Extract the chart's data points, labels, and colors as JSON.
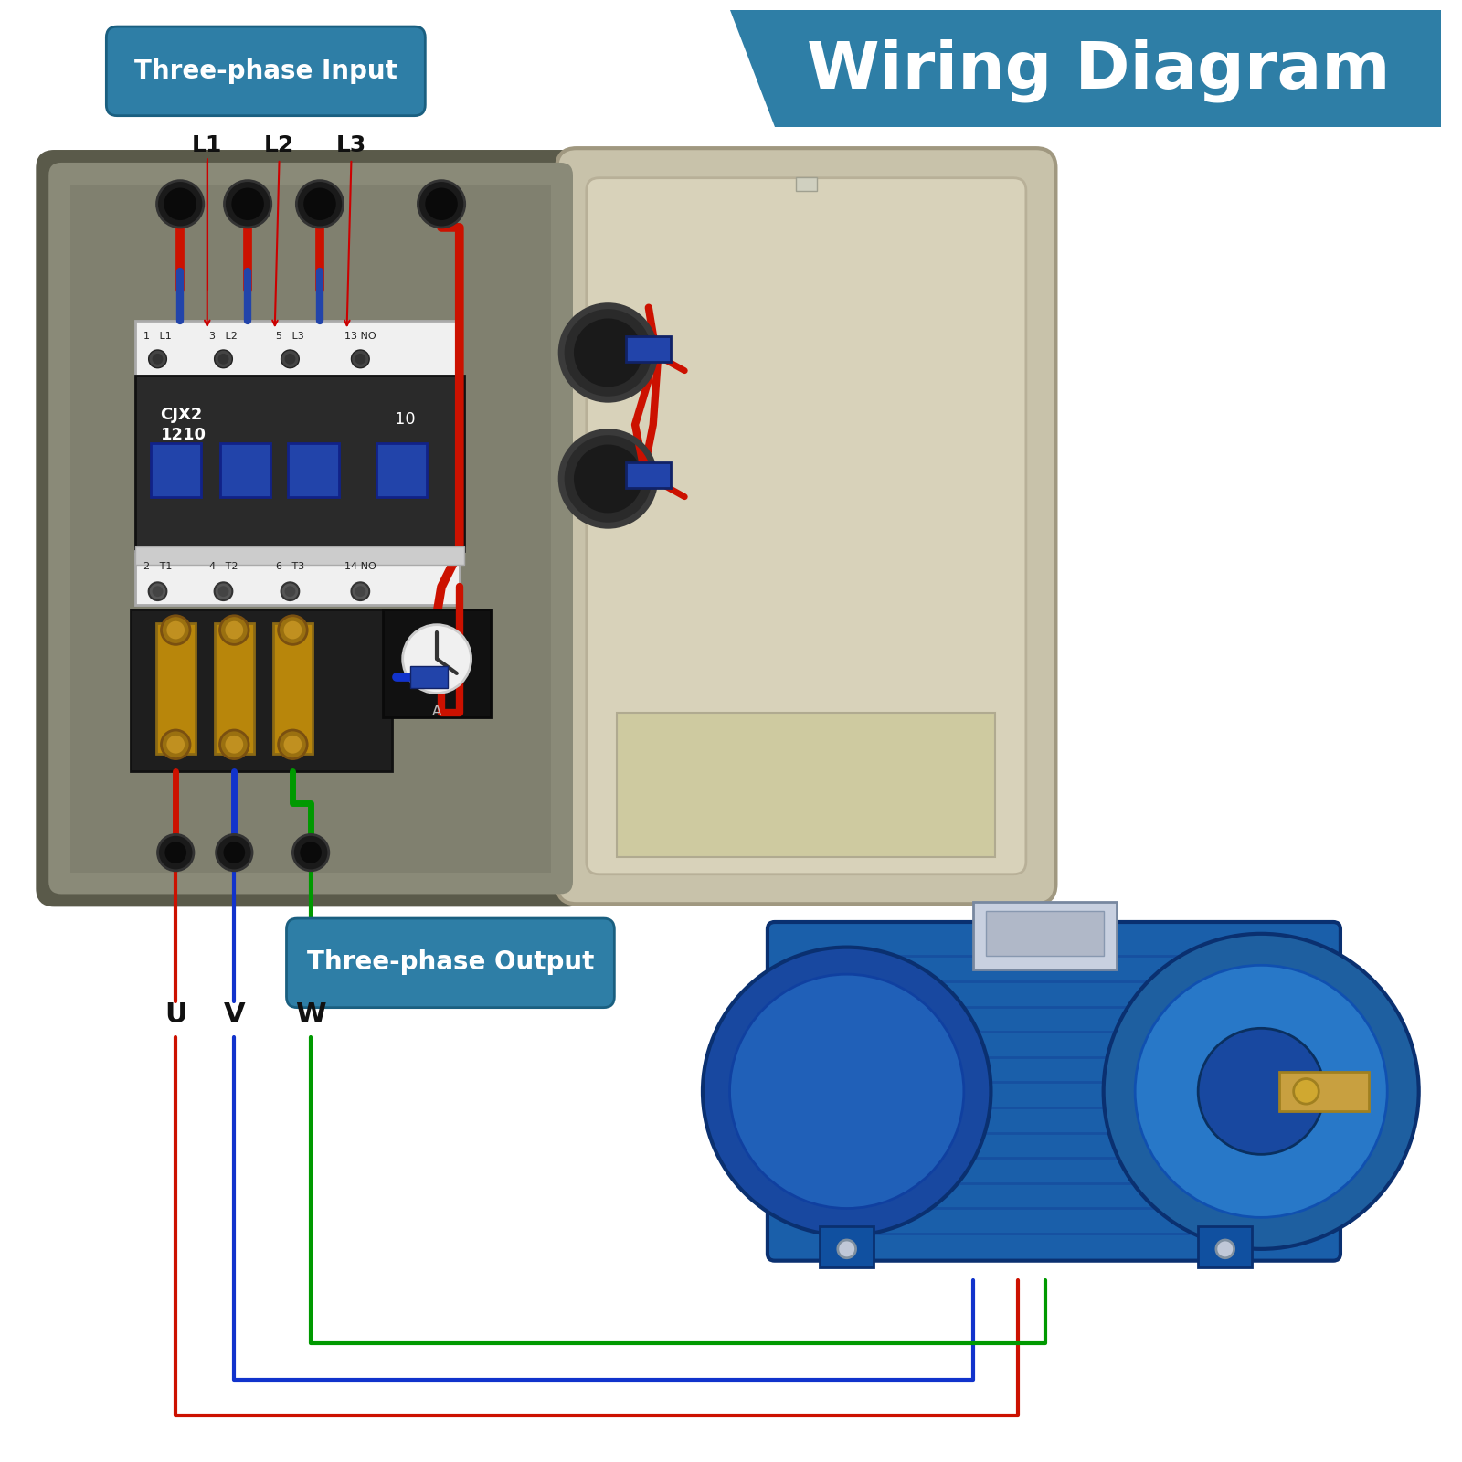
{
  "title": "Wiring Diagram",
  "title_bg": "#2E7EA6",
  "title_fg": "#FFFFFF",
  "label_bg": "#2E7EA6",
  "label_fg": "#FFFFFF",
  "input_label": "Three-phase Input",
  "output_label": "Three-phase Output",
  "input_terminals": [
    "L1",
    "L2",
    "L3"
  ],
  "output_terminals": [
    "U",
    "V",
    "W"
  ],
  "wire_red": "#CC1100",
  "wire_blue": "#1133CC",
  "wire_green": "#009900",
  "bg": "#FFFFFF",
  "box_bg": "#8A8A78",
  "box_edge": "#5A5A4A",
  "box_inner": "#787868",
  "lid_bg": "#C8C2AA",
  "lid_inner": "#D8D2BA",
  "lid_inner2": "#CECAA0",
  "contactor_dark": "#2A2A2A",
  "contactor_mid": "#3A3A3A",
  "terminal_light": "#E0E0E0",
  "terminal_white": "#F0F0F0",
  "btn_blue": "#2244AA",
  "relay_gold": "#B8860B",
  "arrow_red": "#CC0000",
  "motor_blue": "#1A5FAA",
  "motor_dark": "#0A3070",
  "motor_mid": "#2878C8",
  "motor_shaft": "#C8A040"
}
